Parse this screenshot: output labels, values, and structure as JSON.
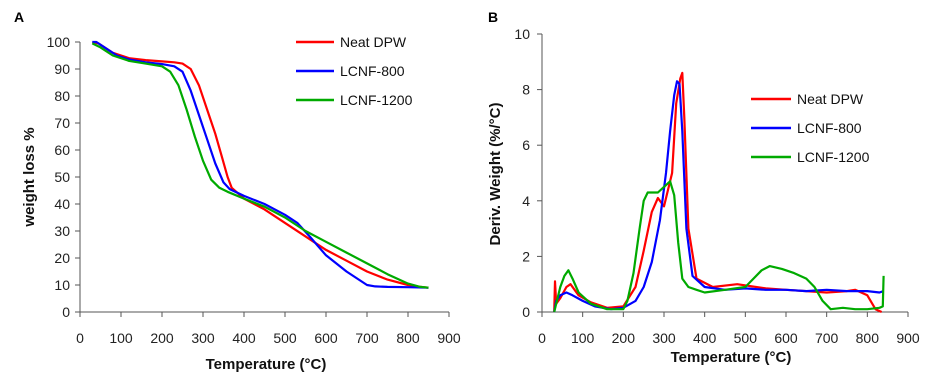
{
  "chart_data": [
    {
      "panel": "A",
      "type": "line",
      "xlabel": "Temperature (°C)",
      "ylabel": "weight loss %",
      "xlim": [
        0,
        900
      ],
      "ylim": [
        0,
        100
      ],
      "xticks": [
        0,
        100,
        200,
        300,
        400,
        500,
        600,
        700,
        800,
        900
      ],
      "yticks": [
        0,
        10,
        20,
        30,
        40,
        50,
        60,
        70,
        80,
        90,
        100
      ],
      "grid": false,
      "legend": "top-right",
      "series": [
        {
          "name": "Neat DPW",
          "color": "#ff0000",
          "x": [
            30,
            45,
            80,
            120,
            160,
            200,
            230,
            250,
            270,
            290,
            310,
            330,
            345,
            360,
            370,
            400,
            450,
            500,
            550,
            600,
            650,
            700,
            750,
            800,
            830,
            850
          ],
          "y": [
            100,
            99.5,
            96,
            94,
            93.3,
            92.8,
            92.5,
            92,
            90,
            84,
            75,
            66,
            58,
            50,
            46,
            42,
            38,
            33,
            28,
            23,
            19,
            15,
            12,
            10,
            9.3,
            9
          ]
        },
        {
          "name": "LCNF-800",
          "color": "#0000ff",
          "x": [
            30,
            40,
            60,
            90,
            120,
            160,
            200,
            230,
            250,
            270,
            290,
            310,
            330,
            350,
            365,
            400,
            450,
            500,
            530,
            560,
            600,
            650,
            700,
            720,
            750,
            800,
            850
          ],
          "y": [
            100,
            100,
            98,
            95,
            93.5,
            92.5,
            91.8,
            91,
            89,
            82,
            73,
            64,
            55,
            48,
            45.5,
            43,
            40,
            36,
            33,
            28,
            21,
            15,
            10,
            9.5,
            9.3,
            9.2,
            9
          ]
        },
        {
          "name": "LCNF-1200",
          "color": "#00aa00",
          "x": [
            30,
            50,
            80,
            120,
            160,
            200,
            220,
            240,
            260,
            280,
            300,
            320,
            340,
            360,
            400,
            450,
            500,
            550,
            600,
            650,
            700,
            750,
            800,
            830,
            850
          ],
          "y": [
            99.5,
            98,
            95,
            93,
            92,
            91,
            89,
            84,
            75,
            65,
            56,
            49,
            46,
            44.5,
            42,
            39,
            35,
            30,
            26,
            22,
            18,
            14,
            10.5,
            9.3,
            9
          ]
        }
      ]
    },
    {
      "panel": "B",
      "type": "line",
      "xlabel": "Temperature (°C)",
      "ylabel": "Deriv. Weight (%/°C)",
      "xlim": [
        0,
        900
      ],
      "ylim": [
        0,
        10
      ],
      "xticks": [
        0,
        100,
        200,
        300,
        400,
        500,
        600,
        700,
        800,
        900
      ],
      "yticks": [
        0,
        2,
        4,
        6,
        8,
        10
      ],
      "grid": false,
      "legend": "top-right",
      "series": [
        {
          "name": "Neat DPW",
          "color": "#ff0000",
          "x": [
            30,
            32,
            35,
            45,
            60,
            70,
            90,
            120,
            160,
            200,
            230,
            250,
            270,
            285,
            300,
            320,
            330,
            340,
            345,
            350,
            360,
            380,
            420,
            480,
            550,
            600,
            650,
            700,
            750,
            770,
            800,
            820,
            835
          ],
          "y": [
            0,
            1.1,
            0.3,
            0.5,
            0.9,
            1.0,
            0.6,
            0.35,
            0.15,
            0.2,
            0.9,
            2.2,
            3.6,
            4.1,
            3.8,
            5.0,
            7.5,
            8.4,
            8.6,
            7.0,
            3.0,
            1.2,
            0.9,
            1.0,
            0.85,
            0.8,
            0.75,
            0.7,
            0.75,
            0.8,
            0.6,
            0.1,
            0
          ]
        },
        {
          "name": "LCNF-800",
          "color": "#0000ff",
          "x": [
            30,
            35,
            45,
            60,
            75,
            100,
            130,
            170,
            200,
            230,
            250,
            270,
            290,
            305,
            315,
            325,
            332,
            338,
            345,
            355,
            370,
            400,
            450,
            500,
            550,
            600,
            650,
            700,
            750,
            800,
            830,
            840
          ],
          "y": [
            0,
            0.4,
            0.6,
            0.7,
            0.6,
            0.4,
            0.2,
            0.1,
            0.15,
            0.4,
            0.9,
            1.8,
            3.3,
            5.0,
            6.5,
            7.8,
            8.3,
            8.2,
            6.5,
            3.0,
            1.3,
            0.9,
            0.8,
            0.85,
            0.8,
            0.8,
            0.75,
            0.8,
            0.75,
            0.75,
            0.7,
            0.75
          ]
        },
        {
          "name": "LCNF-1200",
          "color": "#00aa00",
          "x": [
            30,
            35,
            45,
            55,
            65,
            75,
            90,
            120,
            160,
            200,
            210,
            225,
            240,
            250,
            260,
            270,
            285,
            300,
            315,
            325,
            335,
            345,
            360,
            380,
            400,
            450,
            500,
            520,
            540,
            560,
            590,
            620,
            650,
            670,
            690,
            710,
            740,
            770,
            800,
            830,
            838,
            840
          ],
          "y": [
            0,
            0.3,
            0.9,
            1.3,
            1.5,
            1.2,
            0.7,
            0.3,
            0.1,
            0.1,
            0.4,
            1.4,
            3.0,
            4.0,
            4.3,
            4.3,
            4.3,
            4.5,
            4.7,
            4.2,
            2.5,
            1.2,
            0.9,
            0.8,
            0.7,
            0.8,
            0.9,
            1.2,
            1.5,
            1.65,
            1.55,
            1.4,
            1.2,
            0.9,
            0.4,
            0.1,
            0.15,
            0.1,
            0.1,
            0.15,
            0.2,
            1.3
          ]
        }
      ]
    }
  ]
}
